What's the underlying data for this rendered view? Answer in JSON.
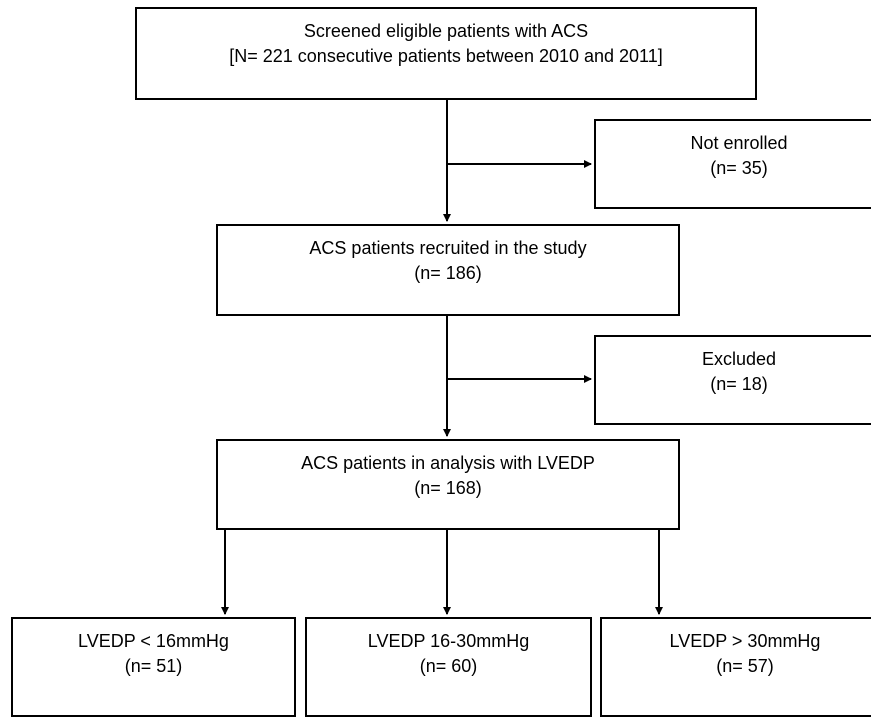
{
  "flowchart": {
    "screened": {
      "line1": "Screened eligible patients with ACS",
      "line2": "[N= 221 consecutive patients between 2010 and 2011]"
    },
    "not_enrolled": {
      "line1": "Not enrolled",
      "line2": "(n= 35)"
    },
    "recruited": {
      "line1": "ACS patients recruited in the study",
      "line2": "(n= 186)"
    },
    "excluded": {
      "line1": "Excluded",
      "line2": "(n= 18)"
    },
    "analysis": {
      "line1": "ACS patients in analysis with LVEDP",
      "line2": "(n= 168)"
    },
    "group_low": {
      "line1": "LVEDP < 16mmHg",
      "line2": "(n= 51)"
    },
    "group_mid": {
      "line1": "LVEDP 16-30mmHg",
      "line2": "(n= 60)"
    },
    "group_high": {
      "line1": "LVEDP > 30mmHg",
      "line2": "(n= 57)"
    }
  }
}
